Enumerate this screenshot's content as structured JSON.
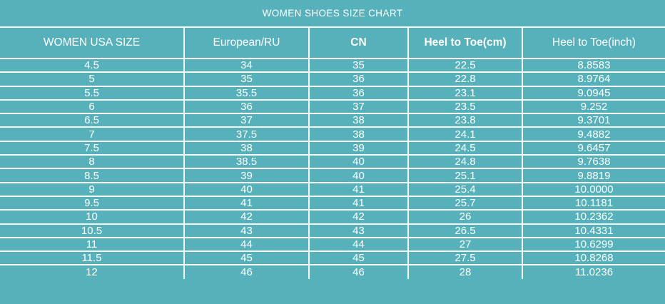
{
  "title": "WOMEN SHOES SIZE CHART",
  "colors": {
    "background": "#57b1ba",
    "grid_line": "#f7fcfc",
    "text": "#ffffff"
  },
  "chart_data": {
    "type": "table",
    "title": "WOMEN SHOES SIZE CHART",
    "columns": [
      "WOMEN USA SIZE",
      "European/RU",
      "CN",
      "Heel to Toe(cm)",
      "Heel to Toe(inch)"
    ],
    "rows": [
      [
        "4.5",
        "34",
        "35",
        "22.5",
        "8.8583"
      ],
      [
        "5",
        "35",
        "36",
        "22.8",
        "8.9764"
      ],
      [
        "5.5",
        "35.5",
        "36",
        "23.1",
        "9.0945"
      ],
      [
        "6",
        "36",
        "37",
        "23.5",
        "9.252"
      ],
      [
        "6.5",
        "37",
        "38",
        "23.8",
        "9.3701"
      ],
      [
        "7",
        "37.5",
        "38",
        "24.1",
        "9.4882"
      ],
      [
        "7.5",
        "38",
        "39",
        "24.5",
        "9.6457"
      ],
      [
        "8",
        "38.5",
        "40",
        "24.8",
        "9.7638"
      ],
      [
        "8.5",
        "39",
        "40",
        "25.1",
        "9.8819"
      ],
      [
        "9",
        "40",
        "41",
        "25.4",
        "10.0000"
      ],
      [
        "9.5",
        "41",
        "41",
        "25.7",
        "10.1181"
      ],
      [
        "10",
        "42",
        "42",
        "26",
        "10.2362"
      ],
      [
        "10.5",
        "43",
        "43",
        "26.5",
        "10.4331"
      ],
      [
        "11",
        "44",
        "44",
        "27",
        "10.6299"
      ],
      [
        "11.5",
        "45",
        "45",
        "27.5",
        "10.8268"
      ],
      [
        "12",
        "46",
        "46",
        "28",
        "11.0236"
      ]
    ]
  }
}
